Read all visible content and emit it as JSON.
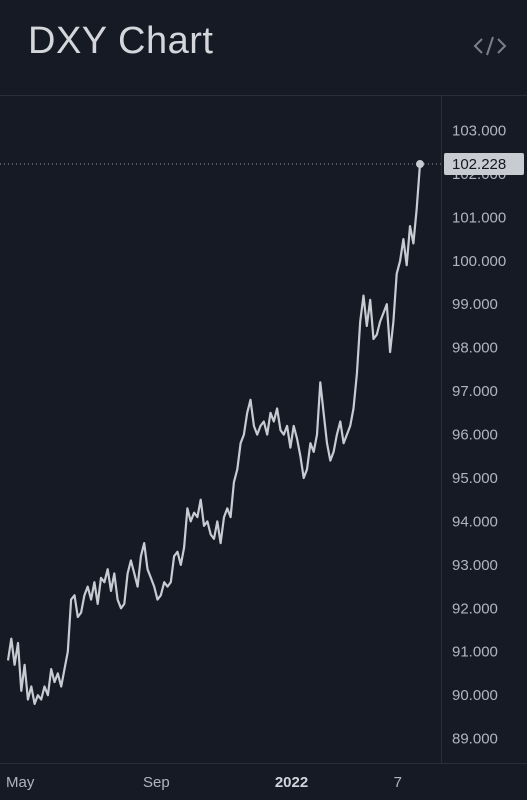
{
  "header": {
    "title": "DXY Chart",
    "embed_icon": "code-embed-icon"
  },
  "colors": {
    "background": "#161a25",
    "line": "#c9cbd3",
    "grid": "#2a2e39",
    "price_label_bg": "#c9cbd3",
    "price_label_text": "#131722"
  },
  "chart_data": {
    "type": "line",
    "title": "DXY Chart",
    "xlabel": "",
    "ylabel": "",
    "ylim": [
      88.6,
      103.9
    ],
    "y_ticks": [
      "89.000",
      "90.000",
      "91.000",
      "92.000",
      "93.000",
      "94.000",
      "95.000",
      "96.000",
      "97.000",
      "98.000",
      "99.000",
      "100.000",
      "101.000",
      "102.000",
      "103.000"
    ],
    "x_ticks": [
      {
        "label": "May",
        "date": "2021-05-01",
        "bold": false
      },
      {
        "label": "Sep",
        "date": "2021-09-01",
        "bold": false
      },
      {
        "label": "2022",
        "date": "2022-01-01",
        "bold": true
      },
      {
        "label": "7",
        "date": "2022-04-07",
        "bold": false
      }
    ],
    "last_value_label": "102.228",
    "last_value": 102.228,
    "grid": false,
    "series": [
      {
        "values": [
          [
            "2021-04-20",
            90.8
          ],
          [
            "2021-04-23",
            91.3
          ],
          [
            "2021-04-26",
            90.7
          ],
          [
            "2021-04-29",
            91.2
          ],
          [
            "2021-05-02",
            90.1
          ],
          [
            "2021-05-05",
            90.7
          ],
          [
            "2021-05-08",
            89.9
          ],
          [
            "2021-05-11",
            90.2
          ],
          [
            "2021-05-14",
            89.8
          ],
          [
            "2021-05-17",
            90.0
          ],
          [
            "2021-05-20",
            89.9
          ],
          [
            "2021-05-23",
            90.2
          ],
          [
            "2021-05-26",
            90.0
          ],
          [
            "2021-05-29",
            90.6
          ],
          [
            "2021-06-01",
            90.3
          ],
          [
            "2021-06-04",
            90.5
          ],
          [
            "2021-06-07",
            90.2
          ],
          [
            "2021-06-10",
            90.6
          ],
          [
            "2021-06-13",
            91.0
          ],
          [
            "2021-06-16",
            92.2
          ],
          [
            "2021-06-19",
            92.3
          ],
          [
            "2021-06-22",
            91.8
          ],
          [
            "2021-06-25",
            91.9
          ],
          [
            "2021-06-28",
            92.3
          ],
          [
            "2021-07-01",
            92.5
          ],
          [
            "2021-07-04",
            92.2
          ],
          [
            "2021-07-07",
            92.6
          ],
          [
            "2021-07-10",
            92.1
          ],
          [
            "2021-07-13",
            92.7
          ],
          [
            "2021-07-16",
            92.6
          ],
          [
            "2021-07-19",
            92.9
          ],
          [
            "2021-07-22",
            92.4
          ],
          [
            "2021-07-25",
            92.8
          ],
          [
            "2021-07-28",
            92.2
          ],
          [
            "2021-07-31",
            92.0
          ],
          [
            "2021-08-03",
            92.1
          ],
          [
            "2021-08-06",
            92.8
          ],
          [
            "2021-08-09",
            93.1
          ],
          [
            "2021-08-12",
            92.8
          ],
          [
            "2021-08-15",
            92.5
          ],
          [
            "2021-08-18",
            93.2
          ],
          [
            "2021-08-21",
            93.5
          ],
          [
            "2021-08-24",
            92.9
          ],
          [
            "2021-08-27",
            92.7
          ],
          [
            "2021-08-30",
            92.5
          ],
          [
            "2021-09-02",
            92.2
          ],
          [
            "2021-09-05",
            92.3
          ],
          [
            "2021-09-08",
            92.6
          ],
          [
            "2021-09-11",
            92.5
          ],
          [
            "2021-09-14",
            92.6
          ],
          [
            "2021-09-17",
            93.2
          ],
          [
            "2021-09-20",
            93.3
          ],
          [
            "2021-09-23",
            93.0
          ],
          [
            "2021-09-26",
            93.4
          ],
          [
            "2021-09-29",
            94.3
          ],
          [
            "2021-10-02",
            94.0
          ],
          [
            "2021-10-05",
            94.2
          ],
          [
            "2021-10-08",
            94.1
          ],
          [
            "2021-10-11",
            94.5
          ],
          [
            "2021-10-14",
            93.9
          ],
          [
            "2021-10-17",
            94.0
          ],
          [
            "2021-10-20",
            93.7
          ],
          [
            "2021-10-23",
            93.6
          ],
          [
            "2021-10-26",
            94.0
          ],
          [
            "2021-10-29",
            93.5
          ],
          [
            "2021-11-01",
            94.1
          ],
          [
            "2021-11-04",
            94.3
          ],
          [
            "2021-11-07",
            94.1
          ],
          [
            "2021-11-10",
            94.9
          ],
          [
            "2021-11-13",
            95.2
          ],
          [
            "2021-11-16",
            95.8
          ],
          [
            "2021-11-19",
            96.0
          ],
          [
            "2021-11-22",
            96.5
          ],
          [
            "2021-11-25",
            96.8
          ],
          [
            "2021-11-28",
            96.2
          ],
          [
            "2021-12-01",
            96.0
          ],
          [
            "2021-12-04",
            96.2
          ],
          [
            "2021-12-07",
            96.3
          ],
          [
            "2021-12-10",
            96.0
          ],
          [
            "2021-12-13",
            96.5
          ],
          [
            "2021-12-16",
            96.3
          ],
          [
            "2021-12-19",
            96.6
          ],
          [
            "2021-12-22",
            96.1
          ],
          [
            "2021-12-25",
            96.0
          ],
          [
            "2021-12-28",
            96.2
          ],
          [
            "2021-12-31",
            95.7
          ],
          [
            "2022-01-03",
            96.2
          ],
          [
            "2022-01-06",
            95.9
          ],
          [
            "2022-01-09",
            95.5
          ],
          [
            "2022-01-12",
            95.0
          ],
          [
            "2022-01-15",
            95.2
          ],
          [
            "2022-01-18",
            95.8
          ],
          [
            "2022-01-21",
            95.6
          ],
          [
            "2022-01-24",
            96.0
          ],
          [
            "2022-01-27",
            97.2
          ],
          [
            "2022-01-30",
            96.5
          ],
          [
            "2022-02-02",
            95.8
          ],
          [
            "2022-02-05",
            95.4
          ],
          [
            "2022-02-08",
            95.6
          ],
          [
            "2022-02-11",
            96.0
          ],
          [
            "2022-02-14",
            96.3
          ],
          [
            "2022-02-17",
            95.8
          ],
          [
            "2022-02-20",
            96.0
          ],
          [
            "2022-02-23",
            96.2
          ],
          [
            "2022-02-26",
            96.6
          ],
          [
            "2022-03-01",
            97.4
          ],
          [
            "2022-03-04",
            98.6
          ],
          [
            "2022-03-07",
            99.2
          ],
          [
            "2022-03-10",
            98.5
          ],
          [
            "2022-03-13",
            99.1
          ],
          [
            "2022-03-16",
            98.2
          ],
          [
            "2022-03-19",
            98.3
          ],
          [
            "2022-03-22",
            98.6
          ],
          [
            "2022-03-25",
            98.8
          ],
          [
            "2022-03-28",
            99.0
          ],
          [
            "2022-03-31",
            97.9
          ],
          [
            "2022-04-03",
            98.6
          ],
          [
            "2022-04-06",
            99.7
          ],
          [
            "2022-04-09",
            100.0
          ],
          [
            "2022-04-12",
            100.5
          ],
          [
            "2022-04-15",
            99.9
          ],
          [
            "2022-04-18",
            100.8
          ],
          [
            "2022-04-21",
            100.4
          ],
          [
            "2022-04-24",
            101.2
          ],
          [
            "2022-04-27",
            102.228
          ]
        ]
      }
    ]
  }
}
